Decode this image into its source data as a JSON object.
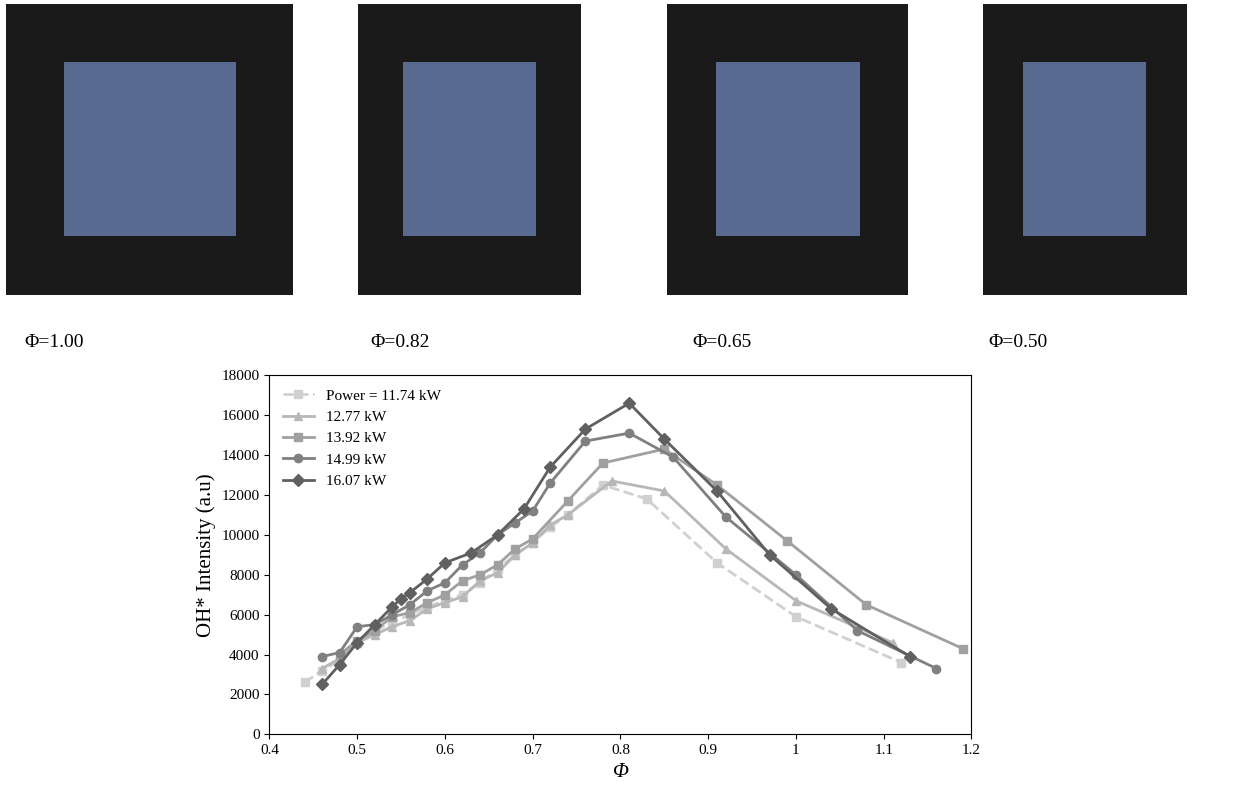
{
  "photo_captions": [
    "Φ=1.00",
    "Φ=0.82",
    "Φ=0.65",
    "Φ=0.50"
  ],
  "chart_data": {
    "type": "line",
    "x_label": "Φ",
    "y_label": "OH* Intensity (a.u)",
    "xlim": [
      0.4,
      1.2
    ],
    "xticks": [
      0.4,
      0.5,
      0.6,
      0.7,
      0.8,
      0.9,
      1,
      1.1,
      1.2
    ],
    "ylim": [
      0,
      18000
    ],
    "yticks": [
      0,
      2000,
      4000,
      6000,
      8000,
      10000,
      12000,
      14000,
      16000,
      18000
    ],
    "legend": "upper left",
    "grid": false,
    "series": [
      {
        "name": "Power = 11.74 kW",
        "color": "#d0d0d0",
        "marker": "square",
        "line_style": "dashed",
        "x": [
          0.44,
          0.46,
          0.48,
          0.5,
          0.52,
          0.54,
          0.56,
          0.58,
          0.6,
          0.62,
          0.64,
          0.66,
          0.68,
          0.7,
          0.72,
          0.74,
          0.78,
          0.83,
          0.91,
          1.0,
          1.12
        ],
        "values": [
          2600,
          3200,
          3700,
          4600,
          5200,
          5600,
          6000,
          6400,
          6700,
          7000,
          7600,
          8300,
          9000,
          9600,
          10400,
          11000,
          12500,
          11800,
          8600,
          5900,
          3600
        ]
      },
      {
        "name": "12.77 kW",
        "color": "#b8b8b8",
        "marker": "triangle",
        "line_style": "solid",
        "x": [
          0.46,
          0.48,
          0.5,
          0.52,
          0.54,
          0.56,
          0.58,
          0.6,
          0.62,
          0.64,
          0.66,
          0.68,
          0.7,
          0.72,
          0.74,
          0.79,
          0.85,
          0.92,
          1.0,
          1.11
        ],
        "values": [
          3300,
          3800,
          4600,
          5000,
          5400,
          5700,
          6300,
          6600,
          6900,
          7700,
          8100,
          9000,
          9600,
          10500,
          11000,
          12700,
          12200,
          9300,
          6700,
          4600
        ]
      },
      {
        "name": "13.92 kW",
        "color": "#a0a0a0",
        "marker": "square",
        "line_style": "solid",
        "x": [
          0.48,
          0.5,
          0.52,
          0.54,
          0.56,
          0.58,
          0.6,
          0.62,
          0.64,
          0.66,
          0.68,
          0.7,
          0.74,
          0.78,
          0.85,
          0.91,
          0.99,
          1.08,
          1.19
        ],
        "values": [
          4000,
          4700,
          5200,
          5900,
          6100,
          6600,
          7000,
          7700,
          8000,
          8500,
          9300,
          9800,
          11700,
          13600,
          14300,
          12500,
          9700,
          6500,
          4300
        ]
      },
      {
        "name": "14.99 kW",
        "color": "#808080",
        "marker": "circle",
        "line_style": "solid",
        "x": [
          0.46,
          0.48,
          0.5,
          0.52,
          0.54,
          0.56,
          0.58,
          0.6,
          0.62,
          0.64,
          0.66,
          0.68,
          0.7,
          0.72,
          0.76,
          0.81,
          0.86,
          0.92,
          1.0,
          1.07,
          1.16
        ],
        "values": [
          3900,
          4100,
          5400,
          5500,
          6000,
          6500,
          7200,
          7600,
          8500,
          9100,
          10000,
          10600,
          11200,
          12600,
          14700,
          15100,
          13900,
          10900,
          8000,
          5200,
          3300
        ]
      },
      {
        "name": "16.07 kW",
        "color": "#606060",
        "marker": "diamond",
        "line_style": "solid",
        "x": [
          0.46,
          0.48,
          0.5,
          0.52,
          0.54,
          0.55,
          0.56,
          0.58,
          0.6,
          0.63,
          0.66,
          0.69,
          0.72,
          0.76,
          0.81,
          0.85,
          0.91,
          0.97,
          1.04,
          1.13
        ],
        "values": [
          2500,
          3500,
          4600,
          5500,
          6400,
          6800,
          7100,
          7800,
          8600,
          9100,
          10000,
          11300,
          13400,
          15300,
          16600,
          14800,
          12200,
          9000,
          6300,
          3900
        ]
      }
    ]
  }
}
